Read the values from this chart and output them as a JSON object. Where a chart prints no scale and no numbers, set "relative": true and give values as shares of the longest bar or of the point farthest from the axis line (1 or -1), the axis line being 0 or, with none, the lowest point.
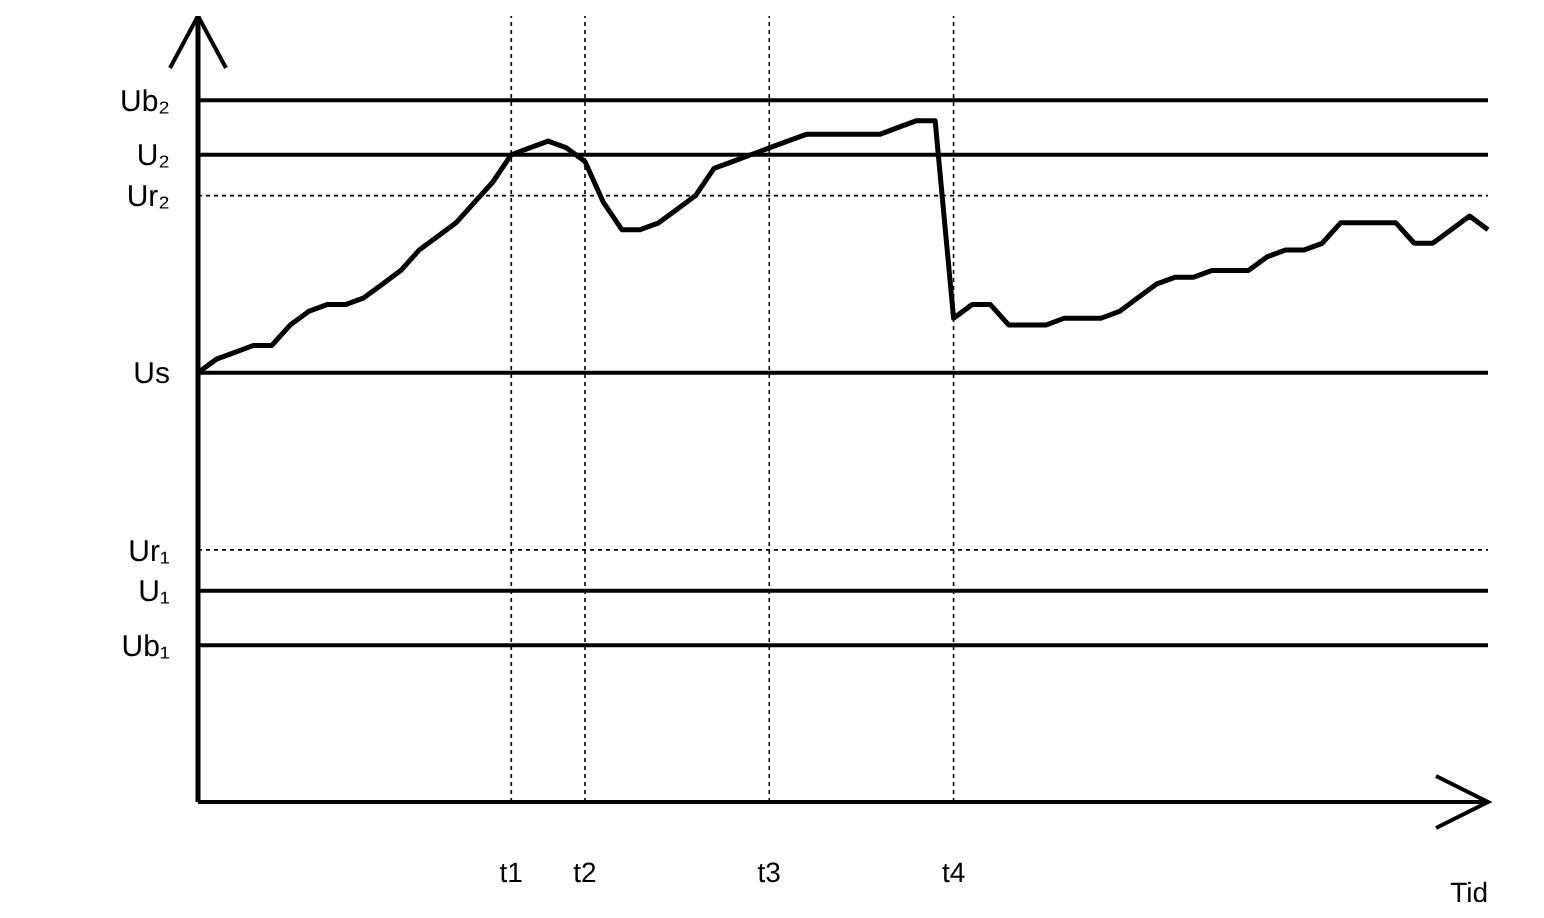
{
  "chart_data": {
    "type": "line",
    "relative": true,
    "xlabel": "Tid",
    "categories": [
      null,
      null,
      null,
      null,
      null,
      null,
      null,
      null,
      null,
      null,
      null,
      null,
      null,
      null,
      null,
      null,
      null,
      "t1",
      null,
      null,
      null,
      "t2",
      null,
      null,
      null,
      null,
      null,
      null,
      null,
      null,
      null,
      "t3",
      null,
      null,
      null,
      null,
      null,
      null,
      null,
      null,
      null,
      "t4",
      null,
      null,
      null,
      null,
      null,
      null,
      null,
      null,
      null,
      null,
      null,
      null,
      null,
      null,
      null,
      null,
      null,
      null,
      null,
      null,
      null,
      null,
      null,
      null,
      null,
      null,
      null,
      null,
      null
    ],
    "series": [
      {
        "color": "#000000",
        "values": [
          0.63,
          0.65,
          0.66,
          0.67,
          0.67,
          0.7,
          0.72,
          0.73,
          0.73,
          0.74,
          0.76,
          0.78,
          0.81,
          0.83,
          0.85,
          0.88,
          0.91,
          0.95,
          0.96,
          0.97,
          0.96,
          0.94,
          0.88,
          0.84,
          0.84,
          0.85,
          0.87,
          0.89,
          0.93,
          0.94,
          0.95,
          0.96,
          0.97,
          0.98,
          0.98,
          0.98,
          0.98,
          0.98,
          0.99,
          1,
          1,
          0.71,
          0.73,
          0.73,
          0.7,
          0.7,
          0.7,
          0.71,
          0.71,
          0.71,
          0.72,
          0.74,
          0.76,
          0.77,
          0.77,
          0.78,
          0.78,
          0.78,
          0.8,
          0.81,
          0.81,
          0.82,
          0.85,
          0.85,
          0.85,
          0.85,
          0.82,
          0.82,
          0.84,
          0.86,
          0.84
        ]
      }
    ],
    "ref_lines": [
      {
        "axis": "y",
        "value": 1.03,
        "label": "Ub₂",
        "color": "#000000",
        "line_style": "solid"
      },
      {
        "axis": "y",
        "value": 0.95,
        "label": "U₂",
        "color": "#000000",
        "line_style": "solid"
      },
      {
        "axis": "y",
        "value": 0.89,
        "label": "Ur₂",
        "color": "#000000",
        "line_style": "dotted"
      },
      {
        "axis": "y",
        "value": 0.63,
        "label": "Us",
        "color": "#000000",
        "line_style": "solid"
      },
      {
        "axis": "y",
        "value": 0.37,
        "label": "Ur₁",
        "color": "#000000",
        "line_style": "dotted"
      },
      {
        "axis": "y",
        "value": 0.31,
        "label": "U₁",
        "color": "#000000",
        "line_style": "solid"
      },
      {
        "axis": "y",
        "value": 0.23,
        "label": "Ub₁",
        "color": "#000000",
        "line_style": "solid"
      },
      {
        "axis": "x",
        "value": "t1",
        "color": "#000000",
        "line_style": "dotted"
      },
      {
        "axis": "x",
        "value": "t2",
        "color": "#000000",
        "line_style": "dotted"
      },
      {
        "axis": "x",
        "value": "t3",
        "color": "#000000",
        "line_style": "dotted"
      },
      {
        "axis": "x",
        "value": "t4",
        "color": "#000000",
        "line_style": "dotted"
      }
    ],
    "grid": false,
    "legend": false,
    "marker": "none",
    "line_style": "solid"
  }
}
